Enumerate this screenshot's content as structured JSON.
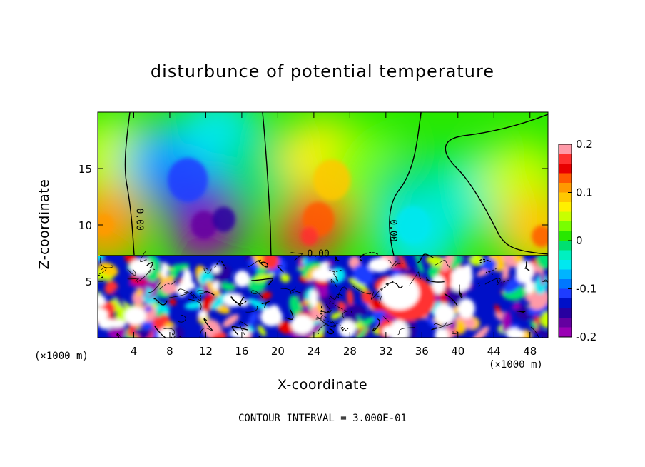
{
  "chart_data": {
    "type": "heatmap",
    "title": "disturbunce of potential temperature",
    "xlabel": "X-coordinate",
    "ylabel": "Z-coordinate",
    "x_unit": "(×1000 m)",
    "z_unit": "(×1000 m)",
    "xticks": [
      4,
      8,
      12,
      16,
      20,
      24,
      28,
      32,
      36,
      40,
      44,
      48
    ],
    "yticks": [
      5,
      10,
      15
    ],
    "xlim": [
      0,
      50
    ],
    "ylim": [
      0,
      20
    ],
    "colorbar": {
      "ticks": [
        "0.2",
        "0.1",
        "0",
        "-0.1",
        "-0.2"
      ],
      "range": [
        -0.2,
        0.2
      ],
      "colors": [
        "#ff9aa8",
        "#ff3030",
        "#e80000",
        "#ff5a00",
        "#ff9a00",
        "#ffc800",
        "#fff000",
        "#c8ff00",
        "#78ff00",
        "#28e800",
        "#00e070",
        "#00f0c0",
        "#00e8f0",
        "#00b4ff",
        "#0078ff",
        "#1e3cff",
        "#0010c8",
        "#2800a0",
        "#6400a0",
        "#9a00b4"
      ]
    },
    "contour_labels": [
      "0.00",
      "0.00",
      "0.00"
    ],
    "contour_interval": "CONTOUR INTERVAL = 3.000E-01",
    "interface_height": 7.3,
    "upper_field": [
      {
        "x": 1.5,
        "z": 16,
        "value": 0.05
      },
      {
        "x": 0.8,
        "z": 10,
        "value": 0.12
      },
      {
        "x": 7.5,
        "z": 15.5,
        "value": -0.07
      },
      {
        "x": 11,
        "z": 13.5,
        "value": -0.12
      },
      {
        "x": 13.5,
        "z": 10.5,
        "value": -0.16
      },
      {
        "x": 11.5,
        "z": 9,
        "value": -0.18
      },
      {
        "x": 13.5,
        "z": 18,
        "value": -0.04
      },
      {
        "x": 18.5,
        "z": 15,
        "value": 0.0
      },
      {
        "x": 25,
        "z": 16,
        "value": 0.08
      },
      {
        "x": 25,
        "z": 11,
        "value": 0.13
      },
      {
        "x": 23.2,
        "z": 9.2,
        "value": 0.17
      },
      {
        "x": 30,
        "z": 15,
        "value": 0.03
      },
      {
        "x": 35,
        "z": 13,
        "value": -0.02
      },
      {
        "x": 35.5,
        "z": 9,
        "value": -0.05
      },
      {
        "x": 42,
        "z": 13,
        "value": -0.03
      },
      {
        "x": 47,
        "z": 14,
        "value": 0.04
      },
      {
        "x": 49,
        "z": 9.5,
        "value": 0.1
      }
    ]
  }
}
